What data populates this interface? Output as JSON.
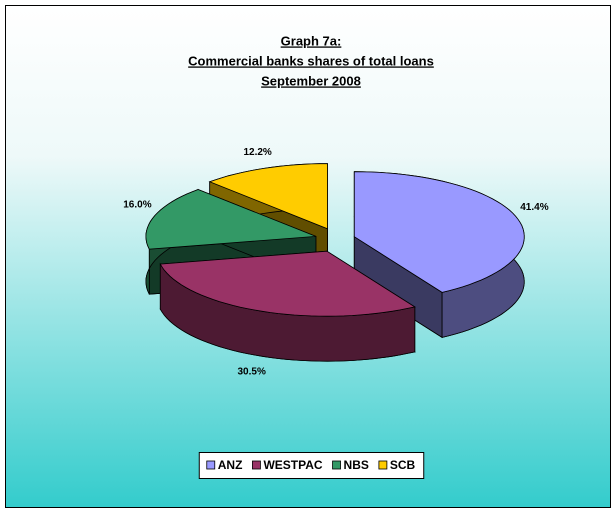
{
  "chart_data": {
    "type": "pie3d",
    "title": [
      "Graph 7a:",
      "Commercial banks shares of total loans",
      "September 2008"
    ],
    "categories": [
      "ANZ",
      "WESTPAC",
      "NBS",
      "SCB"
    ],
    "values": [
      41.4,
      30.5,
      16.0,
      12.2
    ],
    "value_labels": [
      "41.4%",
      "30.5%",
      "16.0%",
      "12.2%"
    ],
    "colors": [
      "#9999ff",
      "#993366",
      "#339966",
      "#ffcc00"
    ],
    "legend": "bottom"
  }
}
